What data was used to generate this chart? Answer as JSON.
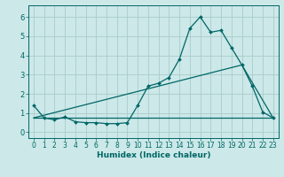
{
  "title": "",
  "xlabel": "Humidex (Indice chaleur)",
  "bg_color": "#cce8e8",
  "grid_color": "#aacccc",
  "line_color": "#006666",
  "xlim": [
    -0.5,
    23.5
  ],
  "ylim": [
    -0.3,
    6.6
  ],
  "xticks": [
    0,
    1,
    2,
    3,
    4,
    5,
    6,
    7,
    8,
    9,
    10,
    11,
    12,
    13,
    14,
    15,
    16,
    17,
    18,
    19,
    20,
    21,
    22,
    23
  ],
  "yticks": [
    0,
    1,
    2,
    3,
    4,
    5,
    6
  ],
  "series1_x": [
    0,
    1,
    2,
    3,
    4,
    5,
    6,
    7,
    8,
    9,
    10,
    11,
    12,
    13,
    14,
    15,
    16,
    17,
    18,
    19,
    20,
    21,
    22,
    23
  ],
  "series1_y": [
    1.4,
    0.75,
    0.65,
    0.8,
    0.55,
    0.5,
    0.5,
    0.45,
    0.45,
    0.5,
    1.4,
    2.4,
    2.55,
    2.85,
    3.8,
    5.4,
    6.0,
    5.2,
    5.3,
    4.4,
    3.5,
    2.4,
    1.05,
    0.75
  ],
  "series2_x": [
    0,
    23
  ],
  "series2_y": [
    0.75,
    0.75
  ],
  "series3_x": [
    0,
    20,
    23
  ],
  "series3_y": [
    0.75,
    3.5,
    0.75
  ],
  "tick_fontsize": 5.5,
  "xlabel_fontsize": 6.5,
  "xlabel_fontweight": "bold"
}
